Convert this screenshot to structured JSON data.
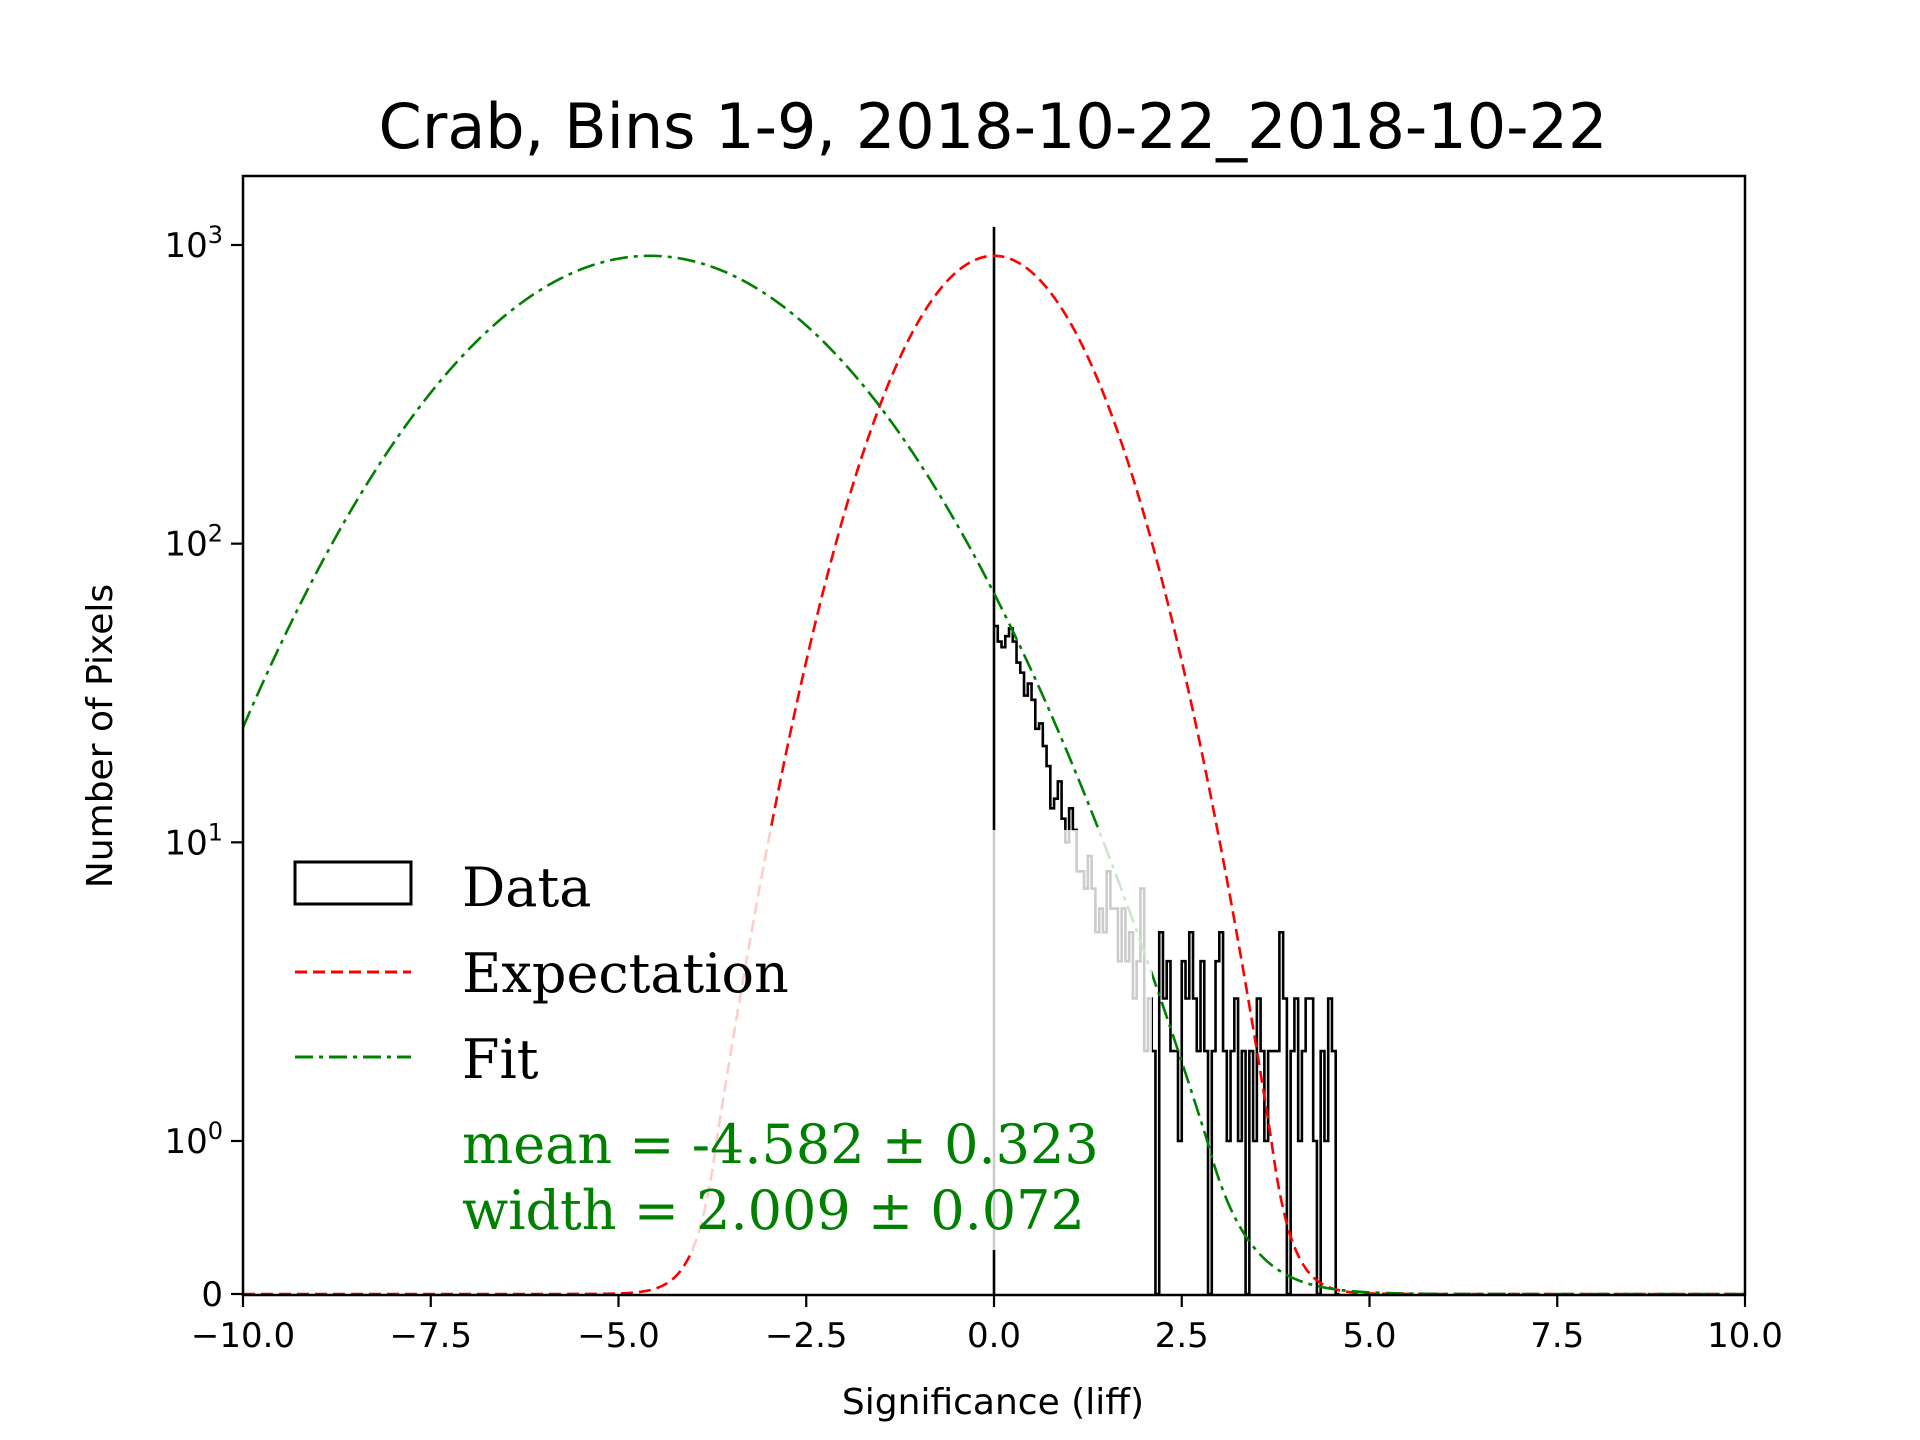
{
  "chart_data": {
    "type": "histogram",
    "title": "Crab, Bins 1-9, 2018-10-22_2018-10-22",
    "xlabel": "Significance (liff)",
    "ylabel": "Number of Pixels",
    "xlim": [
      -10,
      10
    ],
    "yscale": "symlog",
    "xticks": [
      "−10.0",
      "−7.5",
      "−5.0",
      "−2.5",
      "0.0",
      "2.5",
      "5.0",
      "7.5",
      "10.0"
    ],
    "xtick_values": [
      -10,
      -7.5,
      -5,
      -2.5,
      0,
      2.5,
      5,
      7.5,
      10
    ],
    "yticks": [
      {
        "value": 0,
        "base": "0",
        "exp": ""
      },
      {
        "value": 1,
        "base": "10",
        "exp": "0"
      },
      {
        "value": 10,
        "base": "10",
        "exp": "1"
      },
      {
        "value": 100,
        "base": "10",
        "exp": "2"
      },
      {
        "value": 1000,
        "base": "10",
        "exp": "3"
      }
    ],
    "series": [
      {
        "name": "Data",
        "kind": "step",
        "color": "#000000",
        "bin_width": 0.05,
        "bin_starts": [
          0.0,
          0.05,
          0.1,
          0.15,
          0.2,
          0.25,
          0.3,
          0.35,
          0.4,
          0.45,
          0.5,
          0.55,
          0.6,
          0.65,
          0.7,
          0.75,
          0.8,
          0.85,
          0.9,
          0.95,
          1.0,
          1.05,
          1.1,
          1.15,
          1.2,
          1.25,
          1.3,
          1.35,
          1.4,
          1.45,
          1.5,
          1.55,
          1.6,
          1.65,
          1.7,
          1.75,
          1.8,
          1.85,
          1.9,
          1.95,
          2.0,
          2.05,
          2.1,
          2.15,
          2.2,
          2.25,
          2.3,
          2.35,
          2.4,
          2.45,
          2.5,
          2.55,
          2.6,
          2.65,
          2.7,
          2.75,
          2.8,
          2.85,
          2.9,
          2.95,
          3.0,
          3.05,
          3.1,
          3.15,
          3.2,
          3.25,
          3.3,
          3.35,
          3.4,
          3.45,
          3.5,
          3.55,
          3.6,
          3.65,
          3.7,
          3.75,
          3.8,
          3.85,
          3.9,
          3.95,
          4.0,
          4.05,
          4.1,
          4.15,
          4.2,
          4.25,
          4.3,
          4.35,
          4.4,
          4.45,
          4.5,
          4.55
        ],
        "counts": [
          53,
          47,
          45,
          49,
          52,
          47,
          40,
          37,
          31,
          34,
          30,
          24,
          25,
          21,
          18,
          13,
          14,
          16,
          12,
          10,
          13,
          11,
          8,
          8,
          7,
          9,
          7,
          5,
          6,
          5,
          8,
          6,
          6,
          4,
          6,
          4,
          5,
          3,
          4,
          7,
          2,
          3,
          2,
          0,
          5,
          3,
          4,
          2,
          2,
          1,
          4,
          3,
          5,
          3,
          2,
          4,
          2,
          0,
          2,
          4,
          5,
          2,
          1,
          2,
          3,
          1,
          2,
          0,
          2,
          1,
          3,
          2,
          1,
          2,
          2,
          2,
          5,
          3,
          0,
          2,
          3,
          1,
          2,
          3,
          3,
          1,
          0,
          2,
          1,
          3,
          2,
          0
        ],
        "spike_at_zero": 1150
      },
      {
        "name": "Expectation",
        "kind": "gaussian",
        "color": "#ff0000",
        "dash": "dashed",
        "amplitude": 920,
        "mean": 0.0,
        "width": 1.0
      },
      {
        "name": "Fit",
        "kind": "gaussian",
        "color": "#008000",
        "dash": "dashdot",
        "amplitude": 920,
        "mean": -4.582,
        "width": 2.009
      }
    ],
    "legend": {
      "position": "lower-left",
      "entries": [
        "Data",
        "Expectation",
        "Fit"
      ]
    },
    "annotations": {
      "mean_text": "mean = -4.582 ± 0.323",
      "width_text": "width = 2.009 ± 0.072",
      "color": "#008000"
    }
  }
}
